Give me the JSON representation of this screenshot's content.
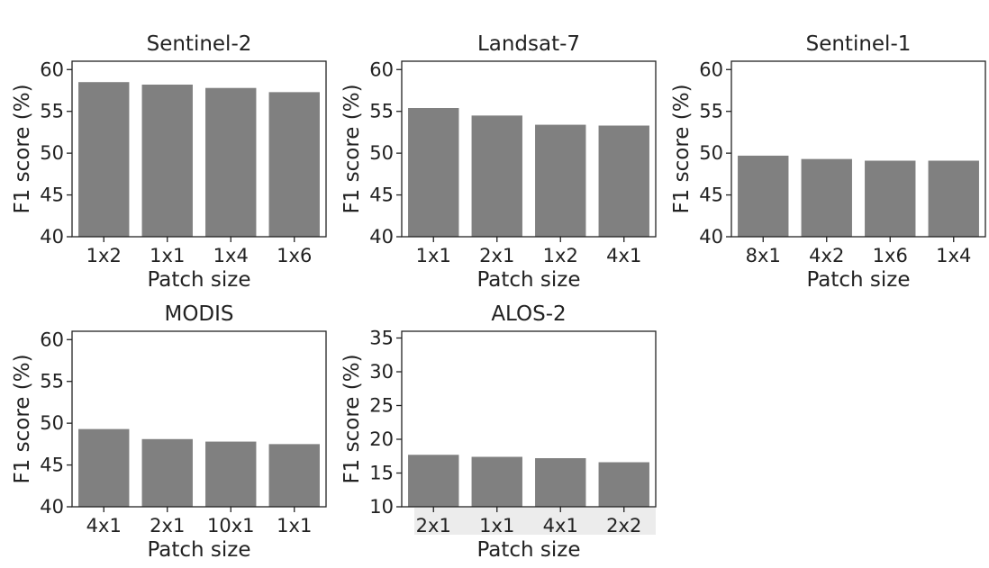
{
  "colors": {
    "bar": "#808080",
    "axis": "#222222",
    "label_band": "#ececec"
  },
  "chart_data": [
    {
      "type": "bar",
      "title": "Sentinel-2",
      "xlabel": "Patch size",
      "ylabel": "F1 score (%)",
      "categories": [
        "1x2",
        "1x1",
        "1x4",
        "1x6"
      ],
      "values": [
        58.5,
        58.2,
        57.8,
        57.3
      ],
      "ylim": [
        40,
        61
      ],
      "yticks": [
        40,
        45,
        50,
        55,
        60
      ],
      "grid": false
    },
    {
      "type": "bar",
      "title": "Landsat-7",
      "xlabel": "Patch size",
      "ylabel": "F1 score (%)",
      "categories": [
        "1x1",
        "2x1",
        "1x2",
        "4x1"
      ],
      "values": [
        55.4,
        54.5,
        53.4,
        53.3
      ],
      "ylim": [
        40,
        61
      ],
      "yticks": [
        40,
        45,
        50,
        55,
        60
      ],
      "grid": false
    },
    {
      "type": "bar",
      "title": "Sentinel-1",
      "xlabel": "Patch size",
      "ylabel": "F1 score (%)",
      "categories": [
        "8x1",
        "4x2",
        "1x6",
        "1x4"
      ],
      "values": [
        49.7,
        49.3,
        49.1,
        49.1
      ],
      "ylim": [
        40,
        61
      ],
      "yticks": [
        40,
        45,
        50,
        55,
        60
      ],
      "grid": false
    },
    {
      "type": "bar",
      "title": "MODIS",
      "xlabel": "Patch size",
      "ylabel": "F1 score (%)",
      "categories": [
        "4x1",
        "2x1",
        "10x1",
        "1x1"
      ],
      "values": [
        49.3,
        48.1,
        47.8,
        47.5
      ],
      "ylim": [
        40,
        61
      ],
      "yticks": [
        40,
        45,
        50,
        55,
        60
      ],
      "grid": false
    },
    {
      "type": "bar",
      "title": "ALOS-2",
      "xlabel": "Patch size",
      "ylabel": "F1 score (%)",
      "categories": [
        "2x1",
        "1x1",
        "4x1",
        "2x2"
      ],
      "values": [
        17.7,
        17.4,
        17.2,
        16.6
      ],
      "ylim": [
        10,
        36
      ],
      "yticks": [
        10,
        15,
        20,
        25,
        30,
        35
      ],
      "grid": false
    }
  ]
}
